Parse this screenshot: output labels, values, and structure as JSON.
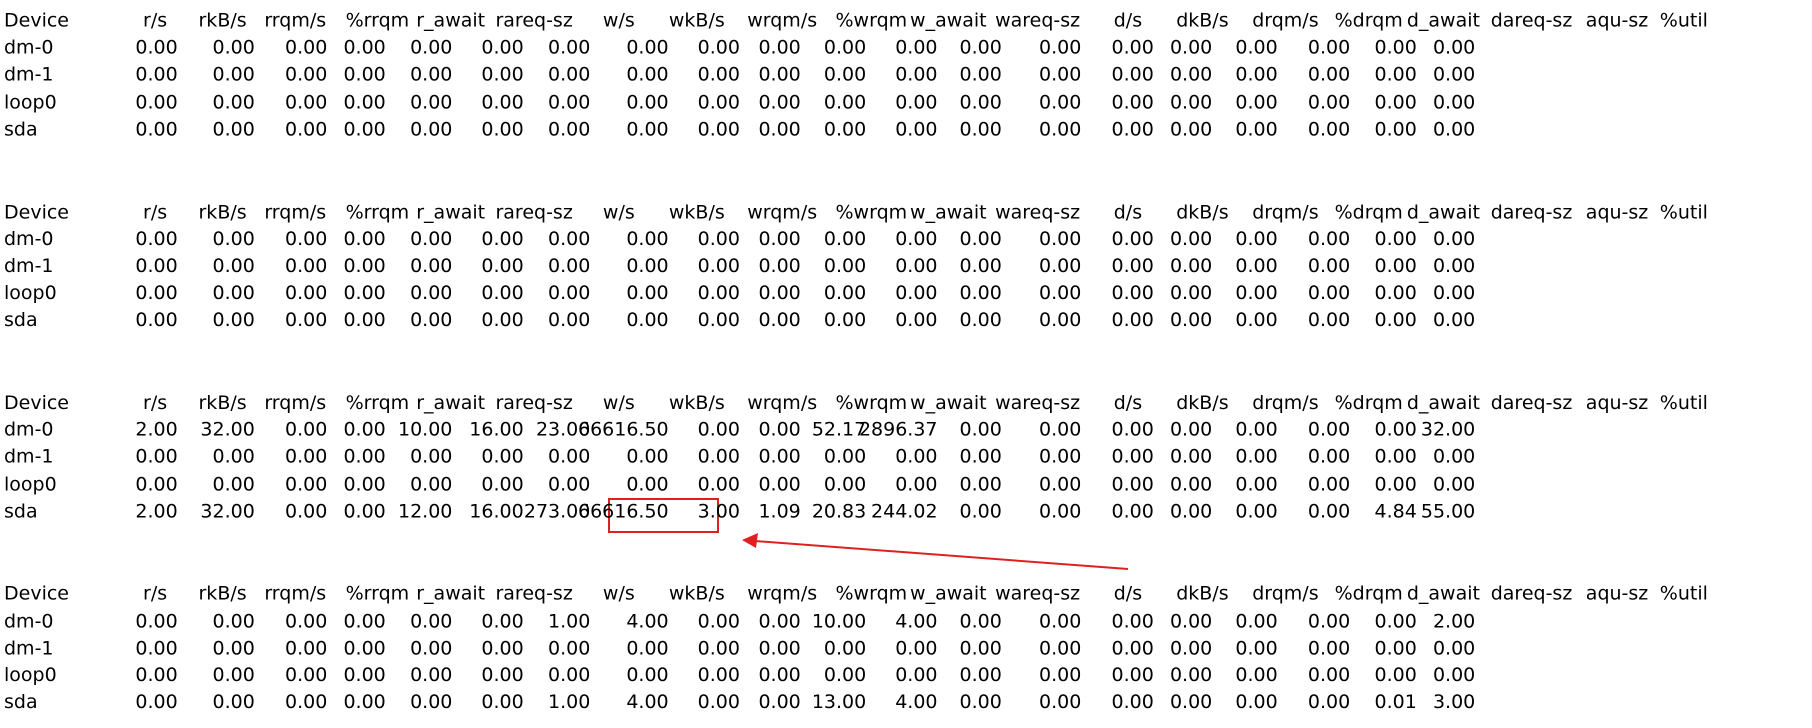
{
  "blocks": [
    {
      "header": [
        "Device",
        "r/s",
        "rkB/s",
        "rrqm/s",
        "%rrqm",
        "r_await",
        "rareq-sz",
        "w/s",
        "wkB/s",
        "wrqm/s",
        "%wrqm",
        "w_await",
        "wareq-sz",
        "d/s",
        "dkB/s",
        "drqm/s",
        "%drqm",
        "d_await",
        "dareq-sz",
        "aqu-sz",
        "%util"
      ],
      "rows": [
        {
          "device": "dm-0",
          "values": [
            "0.00",
            "0.00",
            "0.00",
            "0.00",
            "0.00",
            "0.00",
            "0.00",
            "0.00",
            "0.00",
            "0.00",
            "0.00",
            "0.00",
            "0.00",
            "0.00",
            "0.00",
            "0.00",
            "0.00",
            "0.00",
            "0.00",
            "0.00"
          ]
        },
        {
          "device": "dm-1",
          "values": [
            "0.00",
            "0.00",
            "0.00",
            "0.00",
            "0.00",
            "0.00",
            "0.00",
            "0.00",
            "0.00",
            "0.00",
            "0.00",
            "0.00",
            "0.00",
            "0.00",
            "0.00",
            "0.00",
            "0.00",
            "0.00",
            "0.00",
            "0.00"
          ]
        },
        {
          "device": "loop0",
          "values": [
            "0.00",
            "0.00",
            "0.00",
            "0.00",
            "0.00",
            "0.00",
            "0.00",
            "0.00",
            "0.00",
            "0.00",
            "0.00",
            "0.00",
            "0.00",
            "0.00",
            "0.00",
            "0.00",
            "0.00",
            "0.00",
            "0.00",
            "0.00"
          ]
        },
        {
          "device": "sda",
          "values": [
            "0.00",
            "0.00",
            "0.00",
            "0.00",
            "0.00",
            "0.00",
            "0.00",
            "0.00",
            "0.00",
            "0.00",
            "0.00",
            "0.00",
            "0.00",
            "0.00",
            "0.00",
            "0.00",
            "0.00",
            "0.00",
            "0.00",
            "0.00"
          ]
        }
      ]
    },
    {
      "header": [
        "Device",
        "r/s",
        "rkB/s",
        "rrqm/s",
        "%rrqm",
        "r_await",
        "rareq-sz",
        "w/s",
        "wkB/s",
        "wrqm/s",
        "%wrqm",
        "w_await",
        "wareq-sz",
        "d/s",
        "dkB/s",
        "drqm/s",
        "%drqm",
        "d_await",
        "dareq-sz",
        "aqu-sz",
        "%util"
      ],
      "rows": [
        {
          "device": "dm-0",
          "values": [
            "0.00",
            "0.00",
            "0.00",
            "0.00",
            "0.00",
            "0.00",
            "0.00",
            "0.00",
            "0.00",
            "0.00",
            "0.00",
            "0.00",
            "0.00",
            "0.00",
            "0.00",
            "0.00",
            "0.00",
            "0.00",
            "0.00",
            "0.00"
          ]
        },
        {
          "device": "dm-1",
          "values": [
            "0.00",
            "0.00",
            "0.00",
            "0.00",
            "0.00",
            "0.00",
            "0.00",
            "0.00",
            "0.00",
            "0.00",
            "0.00",
            "0.00",
            "0.00",
            "0.00",
            "0.00",
            "0.00",
            "0.00",
            "0.00",
            "0.00",
            "0.00"
          ]
        },
        {
          "device": "loop0",
          "values": [
            "0.00",
            "0.00",
            "0.00",
            "0.00",
            "0.00",
            "0.00",
            "0.00",
            "0.00",
            "0.00",
            "0.00",
            "0.00",
            "0.00",
            "0.00",
            "0.00",
            "0.00",
            "0.00",
            "0.00",
            "0.00",
            "0.00",
            "0.00"
          ]
        },
        {
          "device": "sda",
          "values": [
            "0.00",
            "0.00",
            "0.00",
            "0.00",
            "0.00",
            "0.00",
            "0.00",
            "0.00",
            "0.00",
            "0.00",
            "0.00",
            "0.00",
            "0.00",
            "0.00",
            "0.00",
            "0.00",
            "0.00",
            "0.00",
            "0.00",
            "0.00"
          ]
        }
      ]
    },
    {
      "header": [
        "Device",
        "r/s",
        "rkB/s",
        "rrqm/s",
        "%rrqm",
        "r_await",
        "rareq-sz",
        "w/s",
        "wkB/s",
        "wrqm/s",
        "%wrqm",
        "w_await",
        "wareq-sz",
        "d/s",
        "dkB/s",
        "drqm/s",
        "%drqm",
        "d_await",
        "dareq-sz",
        "aqu-sz",
        "%util"
      ],
      "rows": [
        {
          "device": "dm-0",
          "values": [
            "2.00",
            "32.00",
            "0.00",
            "0.00",
            "10.00",
            "16.00",
            "23.00",
            "66616.50",
            "0.00",
            "0.00",
            "52.17",
            "2896.37",
            "0.00",
            "0.00",
            "0.00",
            "0.00",
            "0.00",
            "0.00",
            "0.00",
            "32.00"
          ]
        },
        {
          "device": "dm-1",
          "values": [
            "0.00",
            "0.00",
            "0.00",
            "0.00",
            "0.00",
            "0.00",
            "0.00",
            "0.00",
            "0.00",
            "0.00",
            "0.00",
            "0.00",
            "0.00",
            "0.00",
            "0.00",
            "0.00",
            "0.00",
            "0.00",
            "0.00",
            "0.00"
          ]
        },
        {
          "device": "loop0",
          "values": [
            "0.00",
            "0.00",
            "0.00",
            "0.00",
            "0.00",
            "0.00",
            "0.00",
            "0.00",
            "0.00",
            "0.00",
            "0.00",
            "0.00",
            "0.00",
            "0.00",
            "0.00",
            "0.00",
            "0.00",
            "0.00",
            "0.00",
            "0.00"
          ]
        },
        {
          "device": "sda",
          "values": [
            "2.00",
            "32.00",
            "0.00",
            "0.00",
            "12.00",
            "16.00",
            "273.00",
            "66616.50",
            "3.00",
            "1.09",
            "20.83",
            "244.02",
            "0.00",
            "0.00",
            "0.00",
            "0.00",
            "0.00",
            "0.00",
            "4.84",
            "55.00"
          ]
        }
      ]
    },
    {
      "header": [
        "Device",
        "r/s",
        "rkB/s",
        "rrqm/s",
        "%rrqm",
        "r_await",
        "rareq-sz",
        "w/s",
        "wkB/s",
        "wrqm/s",
        "%wrqm",
        "w_await",
        "wareq-sz",
        "d/s",
        "dkB/s",
        "drqm/s",
        "%drqm",
        "d_await",
        "dareq-sz",
        "aqu-sz",
        "%util"
      ],
      "rows": [
        {
          "device": "dm-0",
          "values": [
            "0.00",
            "0.00",
            "0.00",
            "0.00",
            "0.00",
            "0.00",
            "1.00",
            "4.00",
            "0.00",
            "0.00",
            "10.00",
            "4.00",
            "0.00",
            "0.00",
            "0.00",
            "0.00",
            "0.00",
            "0.00",
            "0.00",
            "2.00"
          ]
        },
        {
          "device": "dm-1",
          "values": [
            "0.00",
            "0.00",
            "0.00",
            "0.00",
            "0.00",
            "0.00",
            "0.00",
            "0.00",
            "0.00",
            "0.00",
            "0.00",
            "0.00",
            "0.00",
            "0.00",
            "0.00",
            "0.00",
            "0.00",
            "0.00",
            "0.00",
            "0.00"
          ]
        },
        {
          "device": "loop0",
          "values": [
            "0.00",
            "0.00",
            "0.00",
            "0.00",
            "0.00",
            "0.00",
            "0.00",
            "0.00",
            "0.00",
            "0.00",
            "0.00",
            "0.00",
            "0.00",
            "0.00",
            "0.00",
            "0.00",
            "0.00",
            "0.00",
            "0.00",
            "0.00"
          ]
        },
        {
          "device": "sda",
          "values": [
            "0.00",
            "0.00",
            "0.00",
            "0.00",
            "0.00",
            "0.00",
            "1.00",
            "4.00",
            "0.00",
            "0.00",
            "13.00",
            "4.00",
            "0.00",
            "0.00",
            "0.00",
            "0.00",
            "0.00",
            "0.00",
            "0.01",
            "3.00"
          ]
        }
      ]
    }
  ]
}
